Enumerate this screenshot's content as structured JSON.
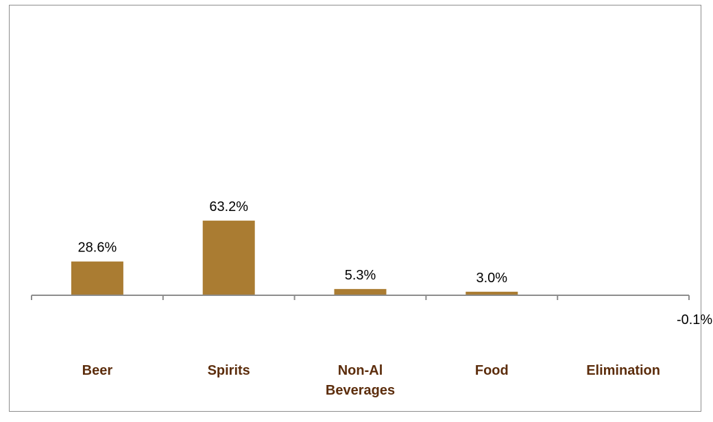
{
  "chart_data": {
    "type": "bar",
    "categories": [
      [
        "Beer"
      ],
      [
        "Spirits"
      ],
      [
        "Non-Al",
        "Beverages"
      ],
      [
        "Food"
      ],
      [
        "Elimination"
      ]
    ],
    "values": [
      28.6,
      63.2,
      5.3,
      3.0,
      -0.1
    ],
    "value_labels": [
      "28.6%",
      "63.2%",
      "5.3%",
      "3.0%",
      "-0.1%"
    ],
    "title": "",
    "xlabel": "",
    "ylabel": "",
    "ylim": [
      -1,
      100
    ],
    "grid": false,
    "legend": "none",
    "colors": {
      "bar": "#aa7c32",
      "category_text": "#5c2d0c",
      "axis": "#8c8c8c",
      "frame": "#8c8c8c"
    }
  }
}
